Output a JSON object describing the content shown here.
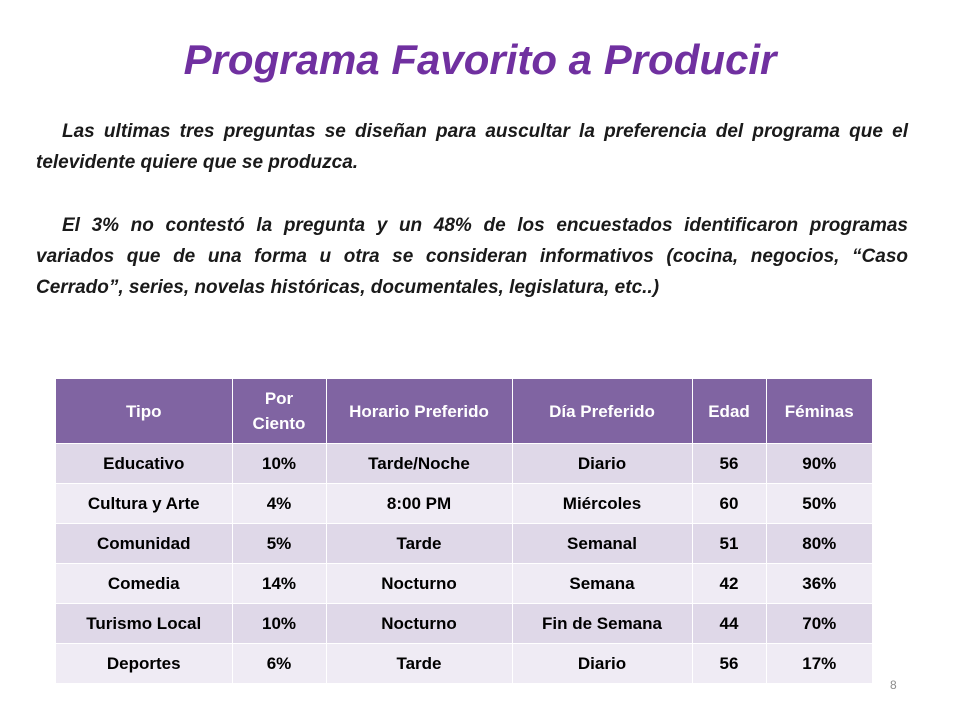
{
  "title": "Programa Favorito a Producir",
  "paragraphs": [
    "Las ultimas tres preguntas se diseñan para auscultar la preferencia del programa que el televidente quiere que se produzca.",
    "El 3% no contestó la pregunta y un 48% de los encuestados identificaron programas variados que de una forma u otra se consideran informativos (cocina, negocios, “Caso Cerrado”, series, novelas históricas, documentales, legislatura, etc..)"
  ],
  "table": {
    "headers": [
      "Tipo",
      "Por Ciento",
      "Horario Preferido",
      "Día Preferido",
      "Edad",
      "Féminas"
    ],
    "rows": [
      [
        "Educativo",
        "10%",
        "Tarde/Noche",
        "Diario",
        "56",
        "90%"
      ],
      [
        "Cultura y Arte",
        "4%",
        "8:00 PM",
        "Miércoles",
        "60",
        "50%"
      ],
      [
        "Comunidad",
        "5%",
        "Tarde",
        "Semanal",
        "51",
        "80%"
      ],
      [
        "Comedia",
        "14%",
        "Nocturno",
        "Semana",
        "42",
        "36%"
      ],
      [
        "Turismo Local",
        "10%",
        "Nocturno",
        "Fin de Semana",
        "44",
        "70%"
      ],
      [
        "Deportes",
        "6%",
        "Tarde",
        "Diario",
        "56",
        "17%"
      ]
    ]
  },
  "page_number": "8",
  "colors": {
    "title": "#7030a0",
    "header_bg": "#8064a2",
    "row_odd": "#dfd8e8",
    "row_even": "#efebf4"
  }
}
